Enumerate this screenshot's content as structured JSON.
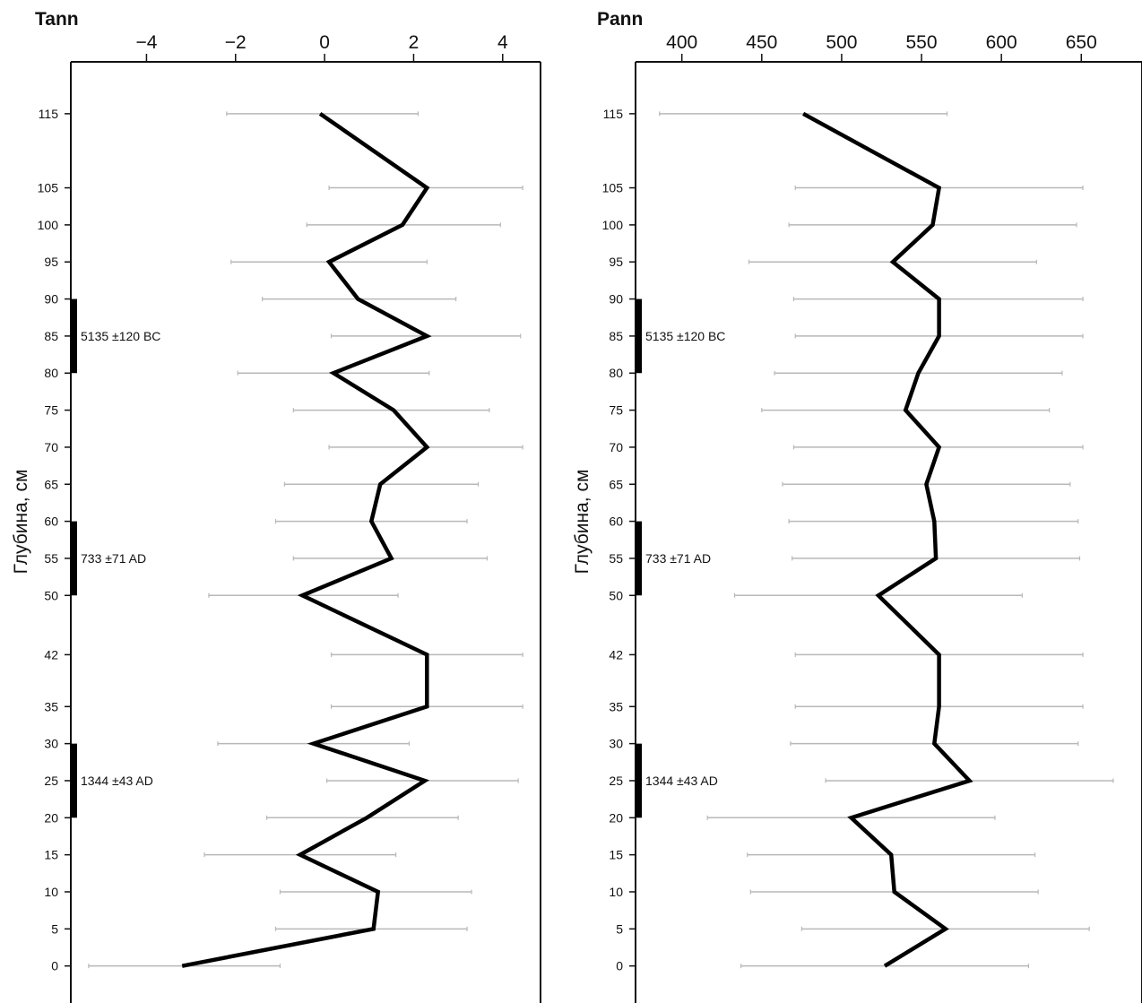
{
  "chart_data": [
    {
      "type": "line",
      "title": "Tann",
      "ylabel": "Глубина, см",
      "xlim": [
        -5.7,
        4.85
      ],
      "xticks": [
        -4,
        -2,
        0,
        2,
        4
      ],
      "xtick_labels": [
        "−4",
        "−2",
        "0",
        "2",
        "4"
      ],
      "ylim": [
        -5,
        122
      ],
      "yticks": [
        0,
        5,
        10,
        15,
        20,
        25,
        30,
        35,
        42,
        50,
        55,
        60,
        65,
        70,
        75,
        80,
        85,
        90,
        95,
        100,
        105,
        115
      ],
      "grid": false,
      "depth": [
        115,
        105,
        100,
        95,
        90,
        85,
        80,
        75,
        70,
        65,
        60,
        55,
        50,
        42,
        35,
        30,
        25,
        20,
        15,
        10,
        5,
        0
      ],
      "values": [
        -0.1,
        2.3,
        1.75,
        0.1,
        0.75,
        2.3,
        0.2,
        1.55,
        2.3,
        1.25,
        1.05,
        1.5,
        -0.5,
        2.3,
        2.3,
        -0.25,
        2.25,
        0.95,
        -0.55,
        1.2,
        1.1,
        -3.2
      ],
      "err_low": [
        -2.2,
        0.1,
        -0.4,
        -2.1,
        -1.4,
        0.15,
        -1.95,
        -0.7,
        0.1,
        -0.9,
        -1.1,
        -0.7,
        -2.6,
        0.15,
        0.15,
        -2.4,
        0.05,
        -1.3,
        -2.7,
        -1.0,
        -1.1,
        -5.3
      ],
      "err_high": [
        2.1,
        4.45,
        3.95,
        2.3,
        2.95,
        4.4,
        2.35,
        3.7,
        4.45,
        3.45,
        3.2,
        3.65,
        1.65,
        4.45,
        4.45,
        1.9,
        4.35,
        3.0,
        1.6,
        3.3,
        3.2,
        -1.0
      ],
      "date_markers": [
        {
          "depth_from": 80,
          "depth_to": 90,
          "label": "5135 ±120 BC"
        },
        {
          "depth_from": 50,
          "depth_to": 60,
          "label": "733 ±71 AD"
        },
        {
          "depth_from": 20,
          "depth_to": 30,
          "label": "1344 ±43 AD"
        }
      ],
      "line_color": "#000000",
      "error_color": "#b8b8b8"
    },
    {
      "type": "line",
      "title": "Pann",
      "ylabel": "Глубина, см",
      "xlim": [
        371,
        688
      ],
      "xticks": [
        400,
        450,
        500,
        550,
        600,
        650
      ],
      "xtick_labels": [
        "400",
        "450",
        "500",
        "550",
        "600",
        "650"
      ],
      "ylim": [
        -5,
        122
      ],
      "yticks": [
        0,
        5,
        10,
        15,
        20,
        25,
        30,
        35,
        42,
        50,
        55,
        60,
        65,
        70,
        75,
        80,
        85,
        90,
        95,
        100,
        105,
        115
      ],
      "grid": false,
      "depth": [
        115,
        105,
        100,
        95,
        90,
        85,
        80,
        75,
        70,
        65,
        60,
        55,
        50,
        42,
        35,
        30,
        25,
        20,
        15,
        10,
        5,
        0
      ],
      "values": [
        476,
        561,
        557,
        532,
        561,
        561,
        548,
        540,
        561,
        553,
        558,
        559,
        523,
        561,
        561,
        558,
        580,
        506,
        531,
        533,
        565,
        527
      ],
      "err_low": [
        386,
        471,
        467,
        442,
        470,
        471,
        458,
        450,
        470,
        463,
        467,
        469,
        433,
        471,
        471,
        468,
        490,
        416,
        441,
        443,
        475,
        437
      ],
      "err_high": [
        566,
        651,
        647,
        622,
        651,
        651,
        638,
        630,
        651,
        643,
        648,
        649,
        613,
        651,
        651,
        648,
        670,
        596,
        621,
        623,
        655,
        617
      ],
      "date_markers": [
        {
          "depth_from": 80,
          "depth_to": 90,
          "label": "5135 ±120 BC"
        },
        {
          "depth_from": 50,
          "depth_to": 60,
          "label": "733 ±71 AD"
        },
        {
          "depth_from": 20,
          "depth_to": 30,
          "label": "1344 ±43 AD"
        }
      ],
      "line_color": "#000000",
      "error_color": "#b8b8b8"
    }
  ]
}
